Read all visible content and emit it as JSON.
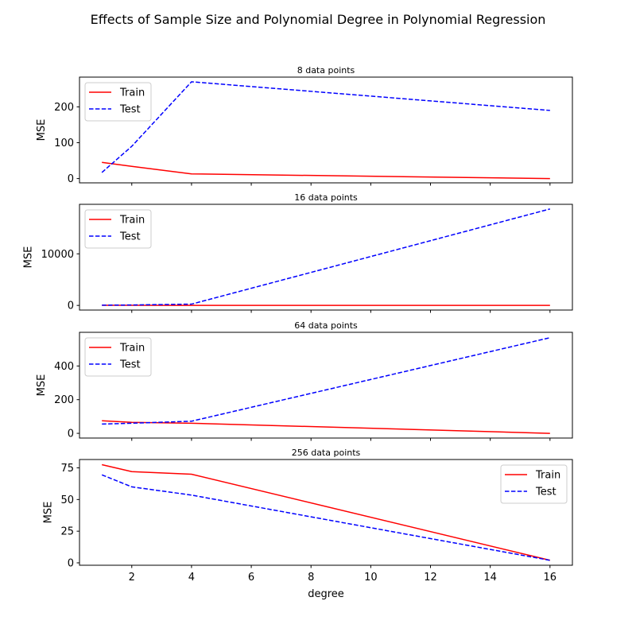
{
  "figure": {
    "title": "Effects of Sample Size and Polynomial Degree in Polynomial Regression",
    "colors": {
      "train": "#ff0000",
      "test": "#0000ff"
    }
  },
  "chart_data": [
    {
      "type": "line",
      "title": "8 data points",
      "xlabel": "",
      "ylabel": "MSE",
      "x": [
        1,
        2,
        4,
        16
      ],
      "xlim": [
        0.25,
        16.75
      ],
      "ylim": [
        -12,
        283
      ],
      "yticks": [
        0,
        100,
        200
      ],
      "xticks": [
        2,
        4,
        6,
        8,
        10,
        12,
        14,
        16
      ],
      "show_xticklabels": false,
      "legend": "upper-left",
      "series": [
        {
          "name": "Train",
          "style": "solid",
          "color": "#ff0000",
          "values": [
            45,
            34,
            13,
            0
          ]
        },
        {
          "name": "Test",
          "style": "dashed",
          "color": "#0000ff",
          "values": [
            17,
            90,
            270,
            190
          ]
        }
      ]
    },
    {
      "type": "line",
      "title": "16 data points",
      "xlabel": "",
      "ylabel": "MSE",
      "x": [
        1,
        2,
        4,
        16
      ],
      "xlim": [
        0.25,
        16.75
      ],
      "ylim": [
        -900,
        19600
      ],
      "yticks": [
        0,
        10000
      ],
      "xticks": [
        2,
        4,
        6,
        8,
        10,
        12,
        14,
        16
      ],
      "show_xticklabels": false,
      "legend": "upper-left",
      "series": [
        {
          "name": "Train",
          "style": "solid",
          "color": "#ff0000",
          "values": [
            20,
            15,
            5,
            0
          ]
        },
        {
          "name": "Test",
          "style": "dashed",
          "color": "#0000ff",
          "values": [
            40,
            80,
            250,
            18700
          ]
        }
      ]
    },
    {
      "type": "line",
      "title": "64 data points",
      "xlabel": "",
      "ylabel": "MSE",
      "x": [
        1,
        2,
        4,
        16
      ],
      "xlim": [
        0.25,
        16.75
      ],
      "ylim": [
        -28,
        600
      ],
      "yticks": [
        0,
        200,
        400
      ],
      "xticks": [
        2,
        4,
        6,
        8,
        10,
        12,
        14,
        16
      ],
      "show_xticklabels": false,
      "legend": "upper-left",
      "series": [
        {
          "name": "Train",
          "style": "solid",
          "color": "#ff0000",
          "values": [
            75,
            65,
            60,
            0
          ]
        },
        {
          "name": "Test",
          "style": "dashed",
          "color": "#0000ff",
          "values": [
            55,
            60,
            72,
            568
          ]
        }
      ]
    },
    {
      "type": "line",
      "title": "256 data points",
      "xlabel": "degree",
      "ylabel": "MSE",
      "x": [
        1,
        2,
        4,
        16
      ],
      "xlim": [
        0.25,
        16.75
      ],
      "ylim": [
        -1.9,
        81.6
      ],
      "yticks": [
        0,
        25,
        50,
        75
      ],
      "xticks": [
        2,
        4,
        6,
        8,
        10,
        12,
        14,
        16
      ],
      "show_xticklabels": true,
      "legend": "upper-right",
      "series": [
        {
          "name": "Train",
          "style": "solid",
          "color": "#ff0000",
          "values": [
            77.5,
            72,
            70,
            2
          ]
        },
        {
          "name": "Test",
          "style": "dashed",
          "color": "#0000ff",
          "values": [
            69.5,
            60,
            53.5,
            2
          ]
        }
      ]
    }
  ]
}
